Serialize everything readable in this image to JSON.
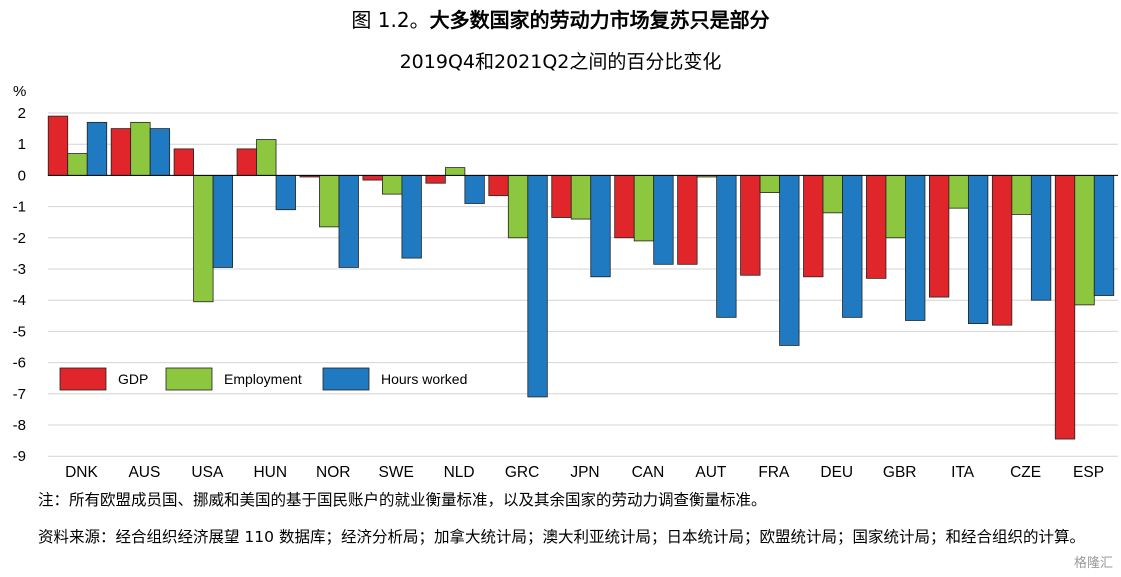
{
  "figure": {
    "title_prefix": "图 1.2。",
    "title_main": "大多数国家的劳动力市场复苏只是部分",
    "subtitle": "2019Q4和2021Q2之间的百分比变化",
    "note": "注：所有欧盟成员国、挪威和美国的基于国民账户的就业衡量标准，以及其余国家的劳动力调查衡量标准。",
    "source": "资料来源：经合组织经济展望 110 数据库；经济分析局；加拿大统计局；澳大利亚统计局；日本统计局；欧盟统计局；国家统计局；和经合组织的计算。",
    "watermark": "格隆汇"
  },
  "chart_data": {
    "type": "bar",
    "ylabel": "%",
    "ylim": [
      -9,
      2
    ],
    "yticks": [
      2,
      1,
      0,
      -1,
      -2,
      -3,
      -4,
      -5,
      -6,
      -7,
      -8,
      -9
    ],
    "grid": true,
    "legend_position": "lower-left",
    "categories": [
      "DNK",
      "AUS",
      "USA",
      "HUN",
      "NOR",
      "SWE",
      "NLD",
      "GRC",
      "JPN",
      "CAN",
      "AUT",
      "FRA",
      "DEU",
      "GBR",
      "ITA",
      "CZE",
      "ESP"
    ],
    "series": [
      {
        "name": "GDP",
        "color": "#e0262b",
        "values": [
          1.9,
          1.5,
          0.85,
          0.85,
          -0.05,
          -0.15,
          -0.25,
          -0.65,
          -1.35,
          -2.0,
          -2.85,
          -3.2,
          -3.25,
          -3.3,
          -3.9,
          -4.8,
          -8.45
        ]
      },
      {
        "name": "Employment",
        "color": "#8dc63f",
        "values": [
          0.7,
          1.7,
          -4.05,
          1.15,
          -1.65,
          -0.6,
          0.25,
          -2.0,
          -1.4,
          -2.1,
          -0.05,
          -0.55,
          -1.2,
          -2.0,
          -1.05,
          -1.25,
          -4.15
        ]
      },
      {
        "name": "Hours worked",
        "color": "#1f7ac2",
        "values": [
          1.7,
          1.5,
          -2.95,
          -1.1,
          -2.95,
          -2.65,
          -0.9,
          -7.1,
          -3.25,
          -2.85,
          -4.55,
          -5.45,
          -4.55,
          -4.65,
          -4.75,
          -4.0,
          -3.85
        ]
      }
    ]
  }
}
